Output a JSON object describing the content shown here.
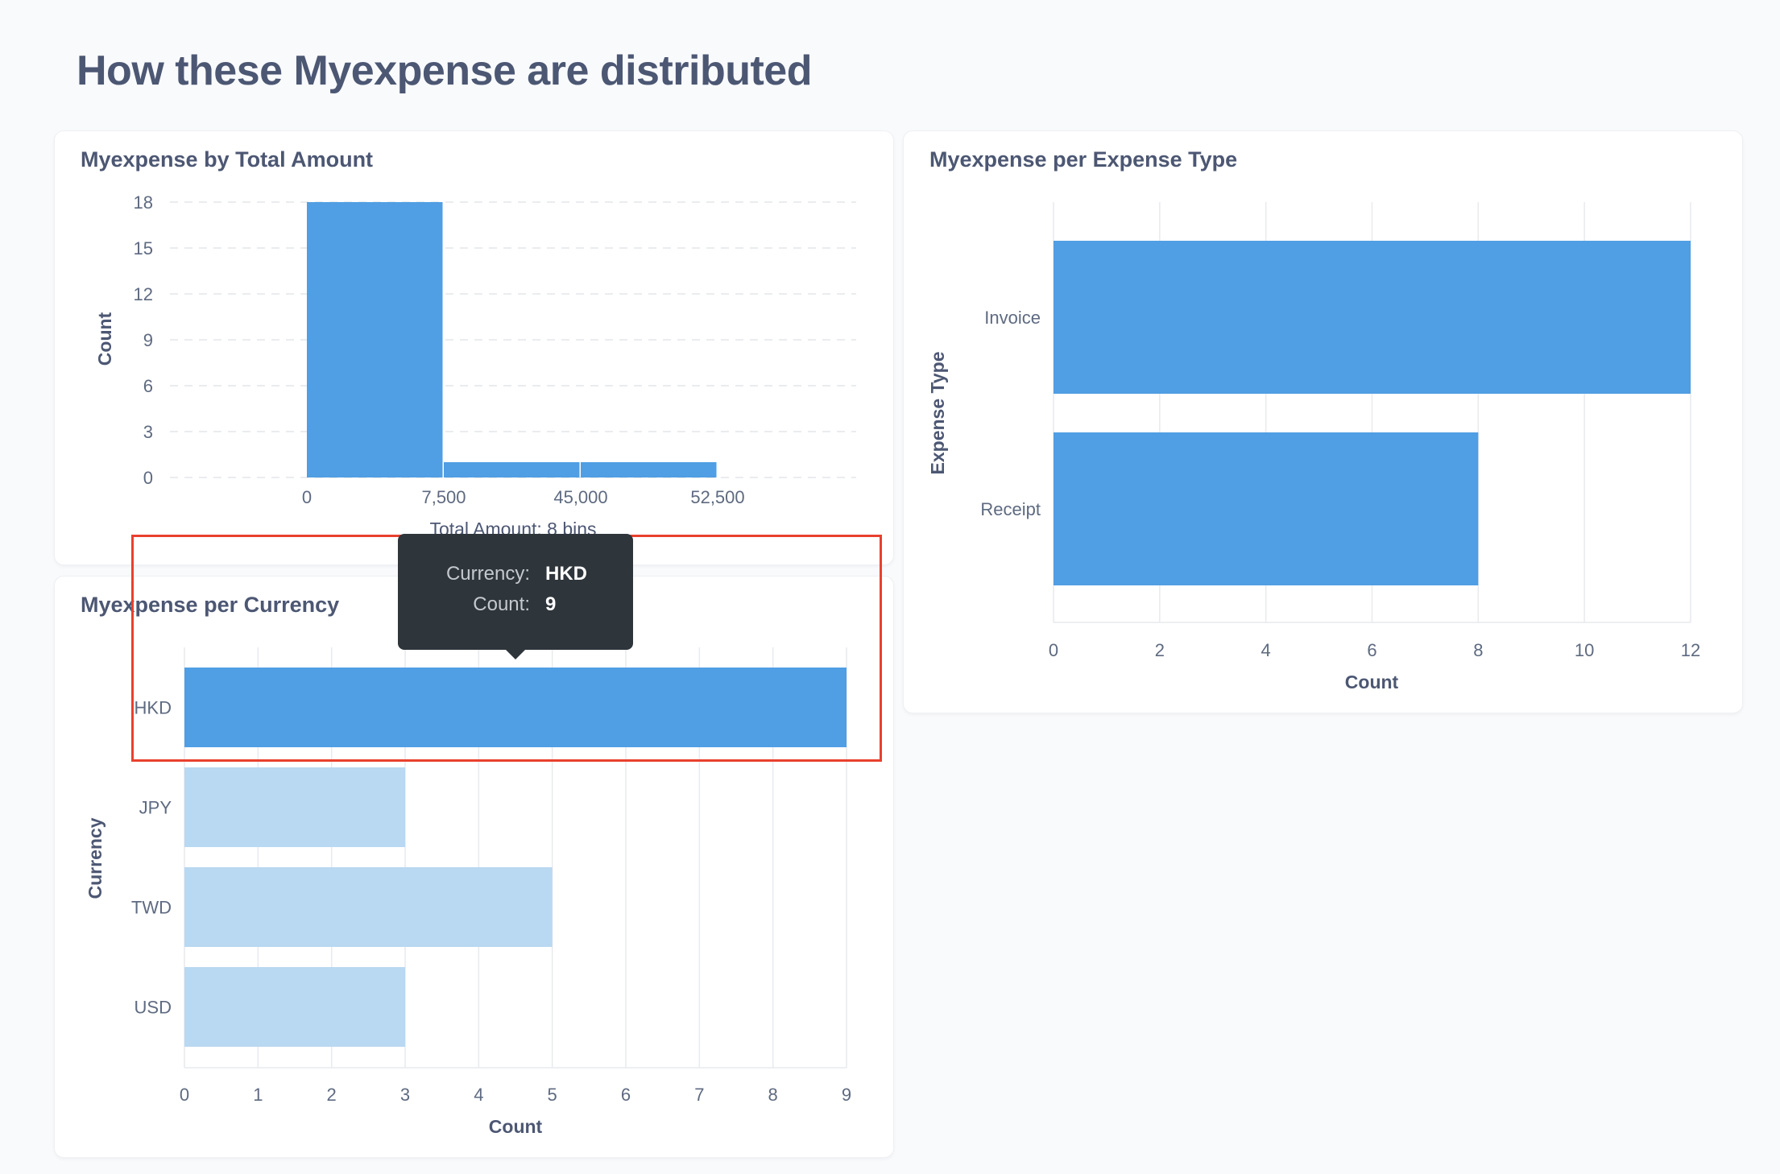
{
  "page": {
    "title": "How these Myexpense are distributed"
  },
  "tooltip": {
    "currency_label": "Currency:",
    "currency_value": "HKD",
    "count_label": "Count:",
    "count_value": "9"
  },
  "colors": {
    "bar": "#509ee3",
    "bar_faded": "#b9d8f1",
    "highlight": "#e9402e",
    "tooltip_bg": "#2e353b"
  },
  "cards": {
    "total_amount": {
      "title": "Myexpense by Total Amount",
      "chart_data": {
        "type": "bar",
        "ylabel": "Count",
        "xlabel": "Total Amount: 8 bins",
        "ylim": [
          0,
          18
        ],
        "yticks": [
          "0",
          "3",
          "6",
          "9",
          "12",
          "15",
          "18"
        ],
        "xticks": [
          "0",
          "7,500",
          "45,000",
          "52,500"
        ],
        "bins": [
          {
            "value": 18
          },
          {
            "value": 1
          },
          {
            "value": 1
          }
        ],
        "grid": "horizontal-dashed"
      }
    },
    "expense_type": {
      "title": "Myexpense per Expense Type",
      "chart_data": {
        "type": "bar",
        "orientation": "horizontal",
        "categories": [
          "Invoice",
          "Receipt"
        ],
        "values": [
          12,
          8
        ],
        "xlabel": "Count",
        "ylabel": "Expense Type",
        "xlim": [
          0,
          12
        ],
        "xticks": [
          "0",
          "2",
          "4",
          "6",
          "8",
          "10",
          "12"
        ],
        "grid": "vertical"
      }
    },
    "currency": {
      "title": "Myexpense per Currency",
      "chart_data": {
        "type": "bar",
        "orientation": "horizontal",
        "categories": [
          "HKD",
          "JPY",
          "TWD",
          "USD"
        ],
        "values": [
          9,
          3,
          5,
          3
        ],
        "hovered": "HKD",
        "xlabel": "Count",
        "ylabel": "Currency",
        "xlim": [
          0,
          9
        ],
        "xticks": [
          "0",
          "1",
          "2",
          "3",
          "4",
          "5",
          "6",
          "7",
          "8",
          "9"
        ],
        "grid": "vertical"
      }
    }
  }
}
